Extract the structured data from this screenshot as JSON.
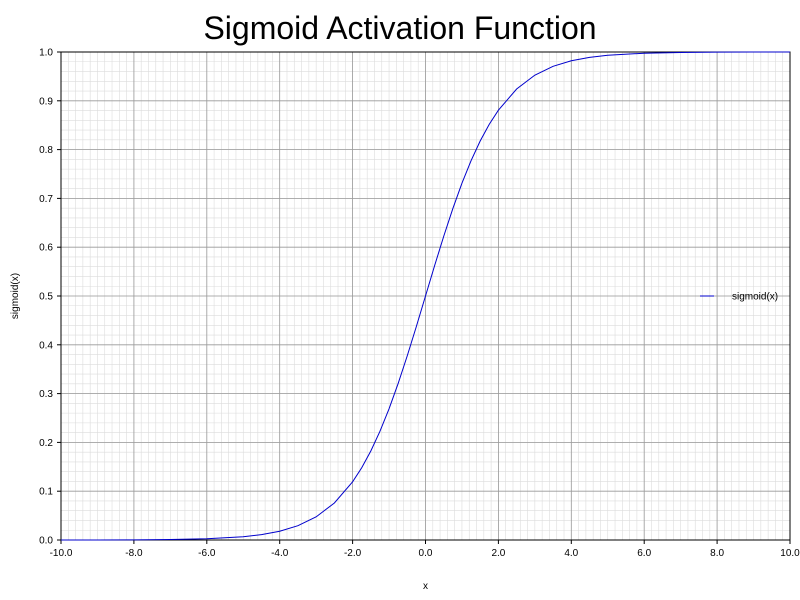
{
  "chart_data": {
    "type": "line",
    "title": "Sigmoid Activation Function",
    "xlabel": "x",
    "ylabel": "sigmoid(x)",
    "xlim": [
      -10,
      10
    ],
    "ylim": [
      0,
      1
    ],
    "x_ticks": [
      "-10.0",
      "-8.0",
      "-6.0",
      "-4.0",
      "-2.0",
      "0.0",
      "2.0",
      "4.0",
      "6.0",
      "8.0",
      "10.0"
    ],
    "y_ticks": [
      "0.0",
      "0.1",
      "0.2",
      "0.3",
      "0.4",
      "0.5",
      "0.6",
      "0.7",
      "0.8",
      "0.9",
      "1.0"
    ],
    "grid": true,
    "legend_position": "right",
    "series": [
      {
        "name": "sigmoid(x)",
        "color": "#0000cc",
        "x": [
          -10,
          -9,
          -8,
          -7,
          -6,
          -5,
          -4.5,
          -4,
          -3.5,
          -3,
          -2.5,
          -2,
          -1.75,
          -1.5,
          -1.25,
          -1,
          -0.75,
          -0.5,
          -0.25,
          0,
          0.25,
          0.5,
          0.75,
          1,
          1.25,
          1.5,
          1.75,
          2,
          2.5,
          3,
          3.5,
          4,
          4.5,
          5,
          6,
          7,
          8,
          9,
          10
        ],
        "y": [
          4.54e-05,
          0.000123,
          0.000335,
          0.000911,
          0.00247,
          0.00669,
          0.011,
          0.018,
          0.0293,
          0.0474,
          0.0759,
          0.1192,
          0.148,
          0.1824,
          0.2227,
          0.2689,
          0.3208,
          0.3775,
          0.4378,
          0.5,
          0.5622,
          0.6225,
          0.6792,
          0.7311,
          0.7773,
          0.8176,
          0.852,
          0.8808,
          0.9241,
          0.9526,
          0.9707,
          0.982,
          0.989,
          0.9933,
          0.99753,
          0.99909,
          0.99966,
          0.99988,
          0.99995
        ]
      }
    ]
  }
}
